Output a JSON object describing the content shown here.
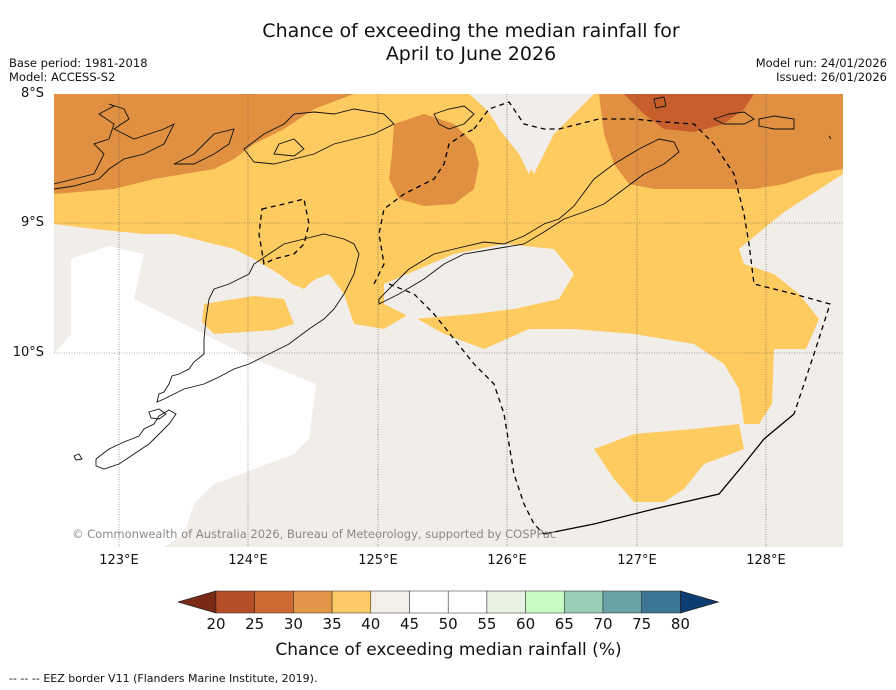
{
  "title": {
    "line1": "Chance of exceeding the median rainfall for",
    "line2": "April to June 2026"
  },
  "meta": {
    "base_period": "Base period: 1981-2018",
    "model": "Model: ACCESS-S2",
    "model_run": "Model run: 24/01/2026",
    "issued": "Issued: 26/01/2026"
  },
  "map": {
    "lat_labels": [
      "8°S",
      "9°S",
      "10°S"
    ],
    "lon_labels": [
      "123°E",
      "124°E",
      "125°E",
      "126°E",
      "127°E",
      "128°E"
    ],
    "copyright": "© Commonwealth of Australia 2026, Bureau of Meteorology, supported by COSPPac",
    "colors": {
      "c30_35": "#e09040",
      "c35_40": "#fecb60",
      "c40_45": "#f1ede8",
      "c25_30": "#c85e2c",
      "below": "#ffffff"
    }
  },
  "colorbar": {
    "ticks": [
      "20",
      "25",
      "30",
      "35",
      "40",
      "45",
      "50",
      "55",
      "60",
      "65",
      "70",
      "75",
      "80"
    ],
    "colors": [
      "#7a2a14",
      "#b34e26",
      "#cc6a33",
      "#e29648",
      "#fdc966",
      "#f2eee8",
      "#ffffff",
      "#ffffff",
      "#e7f3e3",
      "#c8fac4",
      "#96ceb6",
      "#6aa3a6",
      "#3c7694",
      "#0c3d73"
    ],
    "label": "Chance of exceeding median rainfall (%)"
  },
  "footer": {
    "legend_symbol": "--  --  --",
    "legend_text": "EEZ border V11 (Flanders Marine Institute, 2019)."
  }
}
